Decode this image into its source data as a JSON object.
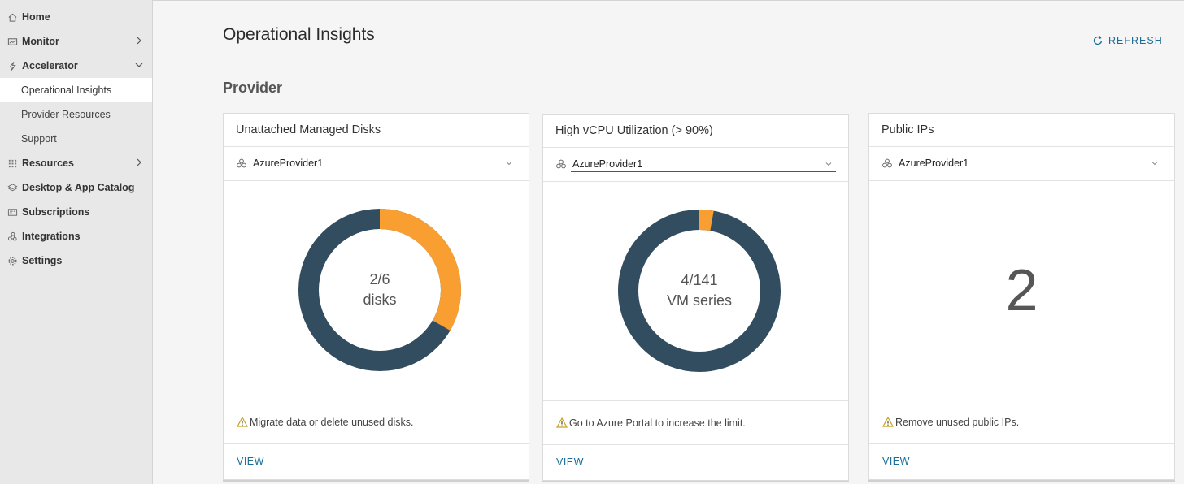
{
  "sidebar": {
    "items": [
      {
        "label": "Home",
        "icon": "home-icon"
      },
      {
        "label": "Monitor",
        "icon": "monitor-icon",
        "chevron": "right"
      },
      {
        "label": "Accelerator",
        "icon": "lightning-icon",
        "chevron": "down"
      },
      {
        "label": "Resources",
        "icon": "grid-icon",
        "chevron": "right"
      },
      {
        "label": "Desktop & App Catalog",
        "icon": "layers-icon"
      },
      {
        "label": "Subscriptions",
        "icon": "subscriptions-icon"
      },
      {
        "label": "Integrations",
        "icon": "integrations-icon"
      },
      {
        "label": "Settings",
        "icon": "gear-icon"
      }
    ],
    "sub_items": [
      {
        "label": "Operational Insights",
        "active": true
      },
      {
        "label": "Provider Resources",
        "active": false
      },
      {
        "label": "Support",
        "active": false
      }
    ]
  },
  "header": {
    "title": "Operational Insights",
    "refresh_label": "REFRESH"
  },
  "section": {
    "title": "Provider"
  },
  "cards": [
    {
      "title": "Unattached Managed Disks",
      "provider": "AzureProvider1",
      "chart": {
        "value": 2,
        "total": 6,
        "line1": "2/6",
        "line2": "disks"
      },
      "message": "Migrate data or delete unused disks.",
      "action": "VIEW"
    },
    {
      "title": "High vCPU Utilization (> 90%)",
      "provider": "AzureProvider1",
      "chart": {
        "value": 4,
        "total": 141,
        "line1": "4/141",
        "line2": "VM series"
      },
      "message": "Go to Azure Portal to increase the limit.",
      "action": "VIEW"
    },
    {
      "title": "Public IPs",
      "provider": "AzureProvider1",
      "number": "2",
      "message": "Remove unused public IPs.",
      "action": "VIEW"
    }
  ],
  "colors": {
    "accent": "#1b6d97",
    "donut_used": "#f99f32",
    "donut_rest": "#314d5f",
    "warning": "#c9a21a"
  }
}
